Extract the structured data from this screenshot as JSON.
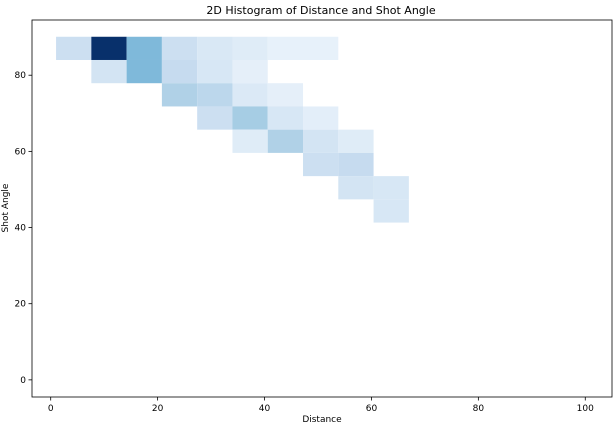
{
  "chart_data": {
    "type": "heatmap",
    "title": "2D Histogram of Distance and Shot Angle",
    "xlabel": "Distance",
    "ylabel": "Shot Angle",
    "xlim": [
      -3.5,
      105
    ],
    "ylim": [
      -4.5,
      94.5
    ],
    "xticks": [
      "0",
      "20",
      "40",
      "60",
      "80",
      "100"
    ],
    "yticks": [
      "0",
      "20",
      "40",
      "60",
      "80"
    ],
    "grid": false,
    "legend": "none",
    "colormap": [
      "#f7fbff",
      "#deebf7",
      "#c6dbef",
      "#9ecae1",
      "#6baed6",
      "#4292c6",
      "#2171b5",
      "#08519c",
      "#08306b"
    ],
    "bin_width_x": 6.6,
    "bin_width_y": 6.1,
    "cells": [
      {
        "x": 1.0,
        "y": 84.0,
        "count": 22
      },
      {
        "x": 7.6,
        "y": 84.0,
        "count": 100
      },
      {
        "x": 14.2,
        "y": 84.0,
        "count": 45
      },
      {
        "x": 20.8,
        "y": 84.0,
        "count": 22
      },
      {
        "x": 27.4,
        "y": 84.0,
        "count": 15
      },
      {
        "x": 34.0,
        "y": 84.0,
        "count": 12
      },
      {
        "x": 40.6,
        "y": 84.0,
        "count": 8
      },
      {
        "x": 47.2,
        "y": 84.0,
        "count": 8
      },
      {
        "x": 7.6,
        "y": 77.9,
        "count": 18
      },
      {
        "x": 14.2,
        "y": 77.9,
        "count": 45
      },
      {
        "x": 20.8,
        "y": 77.9,
        "count": 25
      },
      {
        "x": 27.4,
        "y": 77.9,
        "count": 16
      },
      {
        "x": 34.0,
        "y": 77.9,
        "count": 9
      },
      {
        "x": 20.8,
        "y": 71.8,
        "count": 32
      },
      {
        "x": 27.4,
        "y": 71.8,
        "count": 28
      },
      {
        "x": 34.0,
        "y": 71.8,
        "count": 14
      },
      {
        "x": 40.6,
        "y": 71.8,
        "count": 9
      },
      {
        "x": 27.4,
        "y": 65.7,
        "count": 22
      },
      {
        "x": 34.0,
        "y": 65.7,
        "count": 35
      },
      {
        "x": 40.6,
        "y": 65.7,
        "count": 16
      },
      {
        "x": 47.2,
        "y": 65.7,
        "count": 10
      },
      {
        "x": 34.0,
        "y": 59.6,
        "count": 12
      },
      {
        "x": 40.6,
        "y": 59.6,
        "count": 32
      },
      {
        "x": 47.2,
        "y": 59.6,
        "count": 18
      },
      {
        "x": 53.8,
        "y": 59.6,
        "count": 12
      },
      {
        "x": 47.2,
        "y": 53.5,
        "count": 22
      },
      {
        "x": 53.8,
        "y": 53.5,
        "count": 25
      },
      {
        "x": 53.8,
        "y": 47.4,
        "count": 18
      },
      {
        "x": 60.4,
        "y": 47.4,
        "count": 16
      },
      {
        "x": 60.4,
        "y": 41.3,
        "count": 16
      }
    ]
  }
}
